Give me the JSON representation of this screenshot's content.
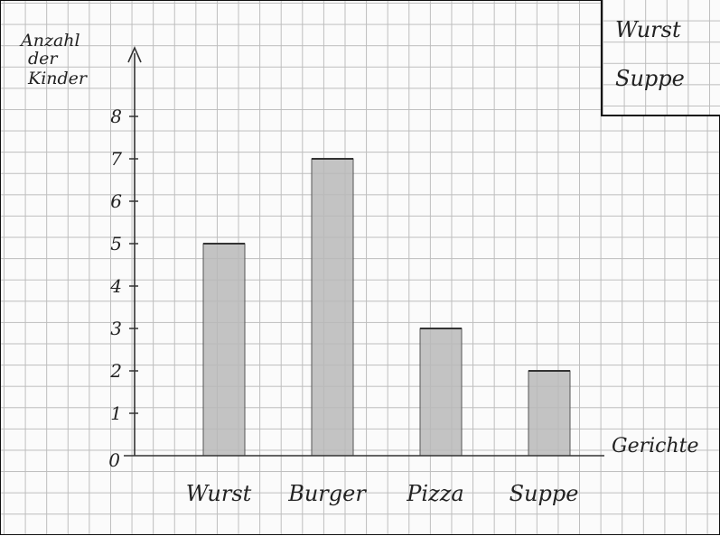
{
  "chart_data": {
    "type": "bar",
    "title": "",
    "ylabel": "Anzahl der Kinder",
    "ylabel_lines": [
      "Anzahl",
      "der",
      "Kinder"
    ],
    "xlabel": "Gerichte",
    "categories": [
      "Wurst",
      "Burger",
      "Pizza",
      "Suppe"
    ],
    "values": [
      5,
      7,
      3,
      2
    ],
    "ylim": [
      0,
      8
    ],
    "yticks": [
      0,
      1,
      2,
      3,
      4,
      5,
      6,
      7,
      8
    ],
    "grid": true,
    "bar_color": "#b8b8b8"
  },
  "legend_table": {
    "rows": [
      "Wurst",
      "Suppe"
    ]
  }
}
